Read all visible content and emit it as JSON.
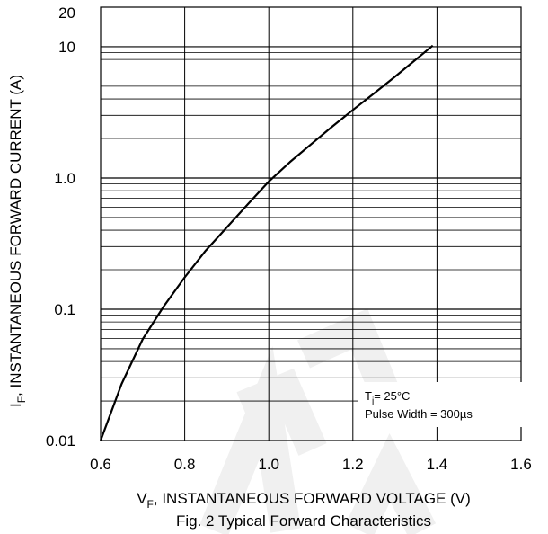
{
  "chart_data": {
    "type": "line",
    "yscale": "log",
    "xlim": [
      0.6,
      1.6
    ],
    "ylim": [
      0.01,
      20
    ],
    "x_ticks": [
      "0.6",
      "0.8",
      "1.0",
      "1.2",
      "1.4",
      "1.6"
    ],
    "y_ticks": [
      {
        "value": 0.01,
        "label": "0.01"
      },
      {
        "value": 0.1,
        "label": "0.1"
      },
      {
        "value": 1,
        "label": "1.0"
      },
      {
        "value": 10,
        "label": "10"
      },
      {
        "value": 20,
        "label": "20"
      }
    ],
    "grid": true,
    "xlabel_main": "V",
    "xlabel_sub": "F",
    "xlabel_rest": ", INSTANTANEOUS FORWARD VOLTAGE (V)",
    "ylabel_main": "I",
    "ylabel_sub": "F",
    "ylabel_rest": ", INSTANTANEOUS FORWARD CURRENT (A)",
    "caption": "Fig. 2  Typical Forward Characteristics",
    "annotation": {
      "tj_main": "T",
      "tj_sub": "j",
      "tj_rest": "= 25°C",
      "pulse": "Pulse Width = 300µs"
    },
    "series": [
      {
        "x": [
          0.6,
          0.65,
          0.7,
          0.75,
          0.8,
          0.85,
          0.9,
          0.95,
          1.0,
          1.05,
          1.1,
          1.15,
          1.2,
          1.25,
          1.3,
          1.35,
          1.39
        ],
        "y": [
          0.01,
          0.027,
          0.059,
          0.105,
          0.175,
          0.28,
          0.42,
          0.63,
          0.94,
          1.32,
          1.8,
          2.45,
          3.3,
          4.4,
          5.9,
          8.0,
          10.2
        ]
      }
    ]
  }
}
